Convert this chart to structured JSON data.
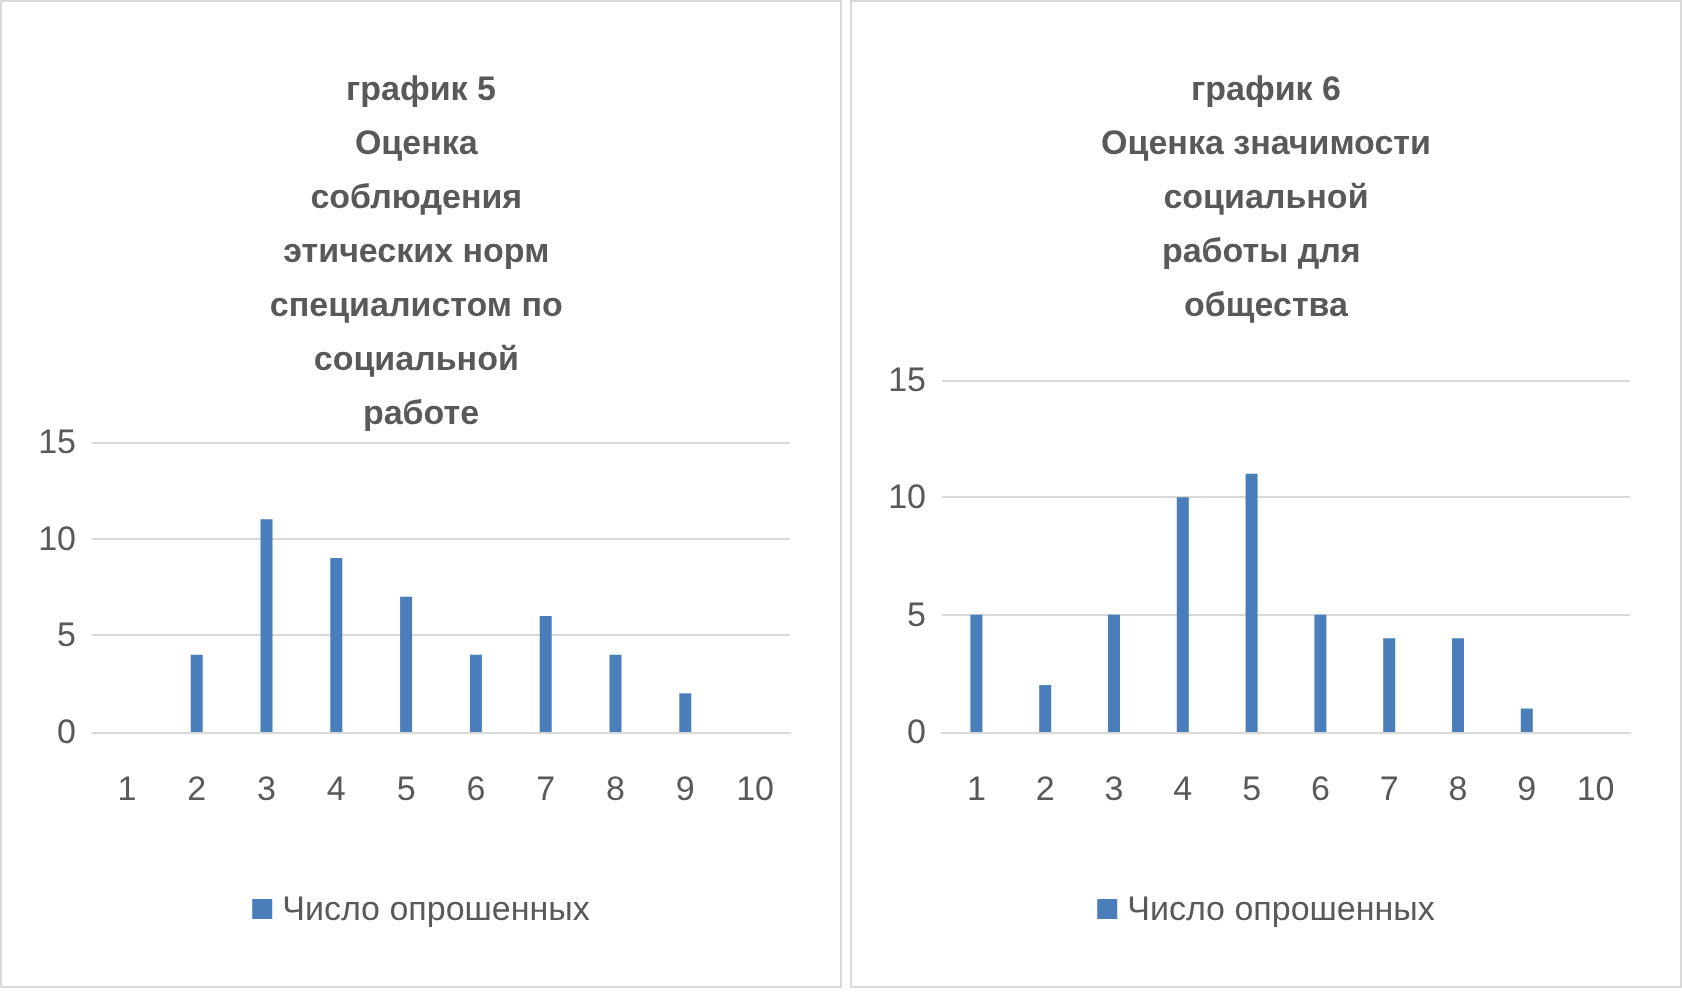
{
  "chart_data": [
    {
      "type": "bar",
      "title": "график 5\nОценка соблюдения этических норм специалистом по социальной работе",
      "categories": [
        "1",
        "2",
        "3",
        "4",
        "5",
        "6",
        "7",
        "8",
        "9",
        "10"
      ],
      "series": [
        {
          "name": "Число опрошенных",
          "color": "#4a7ebb",
          "values": [
            null,
            4,
            11,
            9,
            7,
            4,
            6,
            4,
            2,
            null
          ]
        }
      ],
      "ylim": [
        0,
        15
      ],
      "yticks": [
        0,
        5,
        10,
        15
      ],
      "grid": "y",
      "legend": "bottom"
    },
    {
      "type": "bar",
      "title": "график 6\nОценка значимости социальной работы для общества",
      "categories": [
        "1",
        "2",
        "3",
        "4",
        "5",
        "6",
        "7",
        "8",
        "9",
        "10"
      ],
      "series": [
        {
          "name": "Число опрошенных",
          "color": "#4a7ebb",
          "values": [
            5,
            2,
            5,
            10,
            11,
            5,
            4,
            4,
            1,
            null
          ]
        }
      ],
      "ylim": [
        0,
        15
      ],
      "yticks": [
        0,
        5,
        10,
        15
      ],
      "grid": "y",
      "legend": "bottom"
    }
  ]
}
